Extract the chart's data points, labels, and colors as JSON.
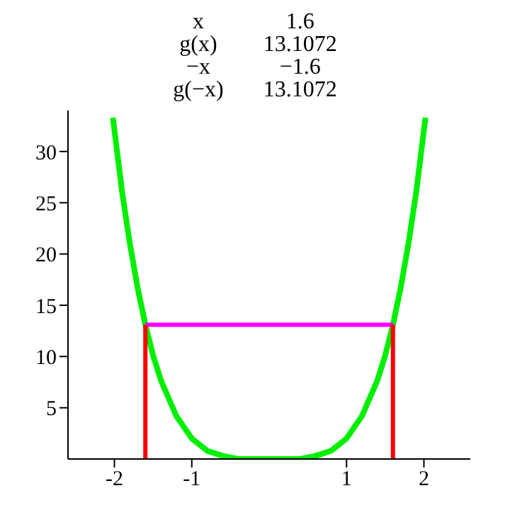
{
  "chart_data": {
    "type": "line",
    "annotations": [
      "x",
      "1.6",
      "g(x)",
      "13.1072",
      "−x",
      "−1.6",
      "g(−x)",
      "13.1072"
    ],
    "xlim": [
      -2.6,
      2.6
    ],
    "ylim": [
      0,
      34
    ],
    "xticks": [
      -2,
      -1,
      1,
      2
    ],
    "yticks": [
      5,
      10,
      15,
      20,
      25,
      30
    ],
    "grid": false,
    "marker": "none",
    "line_style": "solid",
    "series": [
      {
        "color": "#00ee00",
        "x": [
          -2.02,
          -1.9,
          -1.8,
          -1.7,
          -1.6,
          -1.5,
          -1.4,
          -1.2,
          -1,
          -0.8,
          -0.6,
          -0.4,
          -0.2,
          0,
          0.2,
          0.4,
          0.6,
          0.8,
          1,
          1.2,
          1.4,
          1.5,
          1.6,
          1.7,
          1.8,
          1.9,
          2.02
        ],
        "values": [
          33.3,
          26,
          21,
          16.7,
          13.1,
          10.1,
          7.7,
          4.2,
          2,
          0.8,
          0.3,
          0,
          0,
          0,
          0,
          0,
          0.3,
          0.8,
          2,
          4.2,
          7.7,
          10.1,
          13.1,
          16.7,
          21,
          26,
          33.3
        ]
      },
      {
        "color": "#ff00ff",
        "x": [
          -1.6,
          1.6
        ],
        "values": [
          13.1,
          13.1
        ]
      },
      {
        "color": "#ff0000",
        "x": [
          -1.6,
          -1.6
        ],
        "values": [
          0,
          13.1
        ]
      },
      {
        "color": "#ff0000",
        "x": [
          1.6,
          1.6
        ],
        "values": [
          0,
          13.1
        ]
      }
    ]
  }
}
